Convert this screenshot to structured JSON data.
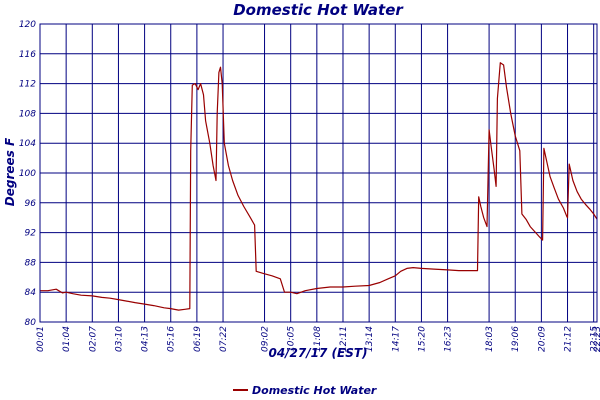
{
  "chart_data": {
    "type": "line",
    "title": "Domestic Hot Water",
    "ylabel": "Degrees F",
    "xlabel": "04/27/17 (EST)",
    "ylim": [
      80,
      120
    ],
    "yticks": [
      80,
      84,
      88,
      92,
      96,
      100,
      104,
      108,
      112,
      116,
      120
    ],
    "grid": true,
    "legend": "bottom",
    "colors": {
      "line": "#990000",
      "grid": "#000080",
      "text": "#000080"
    },
    "xticks": [
      {
        "m": 1,
        "label": "00:01"
      },
      {
        "m": 64,
        "label": "01:04"
      },
      {
        "m": 127,
        "label": "02:07"
      },
      {
        "m": 190,
        "label": "03:10"
      },
      {
        "m": 253,
        "label": "04:13"
      },
      {
        "m": 316,
        "label": "05:16"
      },
      {
        "m": 379,
        "label": "06:19"
      },
      {
        "m": 442,
        "label": "07:22"
      },
      {
        "m": 542,
        "label": "09:02"
      },
      {
        "m": 605,
        "label": "10:05"
      },
      {
        "m": 668,
        "label": "11:08"
      },
      {
        "m": 731,
        "label": "12:11"
      },
      {
        "m": 794,
        "label": "13:14"
      },
      {
        "m": 857,
        "label": "14:17"
      },
      {
        "m": 920,
        "label": "15:20"
      },
      {
        "m": 983,
        "label": "16:23"
      },
      {
        "m": 1083,
        "label": "18:03"
      },
      {
        "m": 1146,
        "label": "19:06"
      },
      {
        "m": 1209,
        "label": "20:09"
      },
      {
        "m": 1272,
        "label": "21:12"
      },
      {
        "m": 1335,
        "label": "22:15"
      },
      {
        "m": 1343,
        "label": "22:23"
      }
    ],
    "series": [
      {
        "name": "Domestic Hot Water",
        "points": [
          [
            1,
            84.2
          ],
          [
            20,
            84.2
          ],
          [
            40,
            84.4
          ],
          [
            55,
            83.9
          ],
          [
            64,
            84.0
          ],
          [
            80,
            83.8
          ],
          [
            100,
            83.6
          ],
          [
            127,
            83.5
          ],
          [
            150,
            83.3
          ],
          [
            170,
            83.2
          ],
          [
            190,
            83.0
          ],
          [
            210,
            82.8
          ],
          [
            230,
            82.6
          ],
          [
            253,
            82.4
          ],
          [
            275,
            82.2
          ],
          [
            300,
            81.9
          ],
          [
            316,
            81.8
          ],
          [
            335,
            81.6
          ],
          [
            350,
            81.7
          ],
          [
            362,
            81.8
          ],
          [
            364,
            103.0
          ],
          [
            368,
            111.8
          ],
          [
            375,
            112.0
          ],
          [
            382,
            111.2
          ],
          [
            388,
            112.0
          ],
          [
            395,
            110.5
          ],
          [
            400,
            107.0
          ],
          [
            410,
            104.0
          ],
          [
            418,
            101.0
          ],
          [
            425,
            99.0
          ],
          [
            428,
            108.0
          ],
          [
            432,
            113.5
          ],
          [
            436,
            114.2
          ],
          [
            440,
            112.0
          ],
          [
            445,
            104.0
          ],
          [
            455,
            101.0
          ],
          [
            465,
            99.0
          ],
          [
            478,
            97.0
          ],
          [
            492,
            95.5
          ],
          [
            508,
            94.0
          ],
          [
            518,
            93.0
          ],
          [
            522,
            86.8
          ],
          [
            540,
            86.5
          ],
          [
            560,
            86.2
          ],
          [
            580,
            85.8
          ],
          [
            590,
            84.0
          ],
          [
            605,
            84.0
          ],
          [
            620,
            83.8
          ],
          [
            640,
            84.2
          ],
          [
            668,
            84.5
          ],
          [
            700,
            84.7
          ],
          [
            731,
            84.7
          ],
          [
            760,
            84.8
          ],
          [
            794,
            84.9
          ],
          [
            820,
            85.3
          ],
          [
            840,
            85.8
          ],
          [
            857,
            86.2
          ],
          [
            870,
            86.8
          ],
          [
            885,
            87.2
          ],
          [
            900,
            87.3
          ],
          [
            920,
            87.2
          ],
          [
            950,
            87.1
          ],
          [
            983,
            87.0
          ],
          [
            1010,
            86.9
          ],
          [
            1040,
            86.9
          ],
          [
            1055,
            86.9
          ],
          [
            1058,
            96.8
          ],
          [
            1063,
            95.5
          ],
          [
            1070,
            94.0
          ],
          [
            1078,
            92.8
          ],
          [
            1083,
            105.8
          ],
          [
            1088,
            103.5
          ],
          [
            1095,
            100.5
          ],
          [
            1100,
            98.2
          ],
          [
            1103,
            110.0
          ],
          [
            1110,
            114.8
          ],
          [
            1118,
            114.5
          ],
          [
            1125,
            111.5
          ],
          [
            1135,
            108.0
          ],
          [
            1146,
            105.0
          ],
          [
            1157,
            103.0
          ],
          [
            1162,
            94.5
          ],
          [
            1172,
            93.8
          ],
          [
            1182,
            92.8
          ],
          [
            1192,
            92.2
          ],
          [
            1205,
            91.4
          ],
          [
            1212,
            91.0
          ],
          [
            1215,
            103.3
          ],
          [
            1222,
            101.5
          ],
          [
            1230,
            99.5
          ],
          [
            1240,
            98.0
          ],
          [
            1250,
            96.5
          ],
          [
            1262,
            95.3
          ],
          [
            1270,
            94.2
          ],
          [
            1272,
            94.0
          ],
          [
            1276,
            101.2
          ],
          [
            1285,
            99.0
          ],
          [
            1295,
            97.5
          ],
          [
            1305,
            96.5
          ],
          [
            1315,
            95.8
          ],
          [
            1325,
            95.2
          ],
          [
            1335,
            94.5
          ],
          [
            1343,
            93.8
          ]
        ]
      }
    ]
  }
}
